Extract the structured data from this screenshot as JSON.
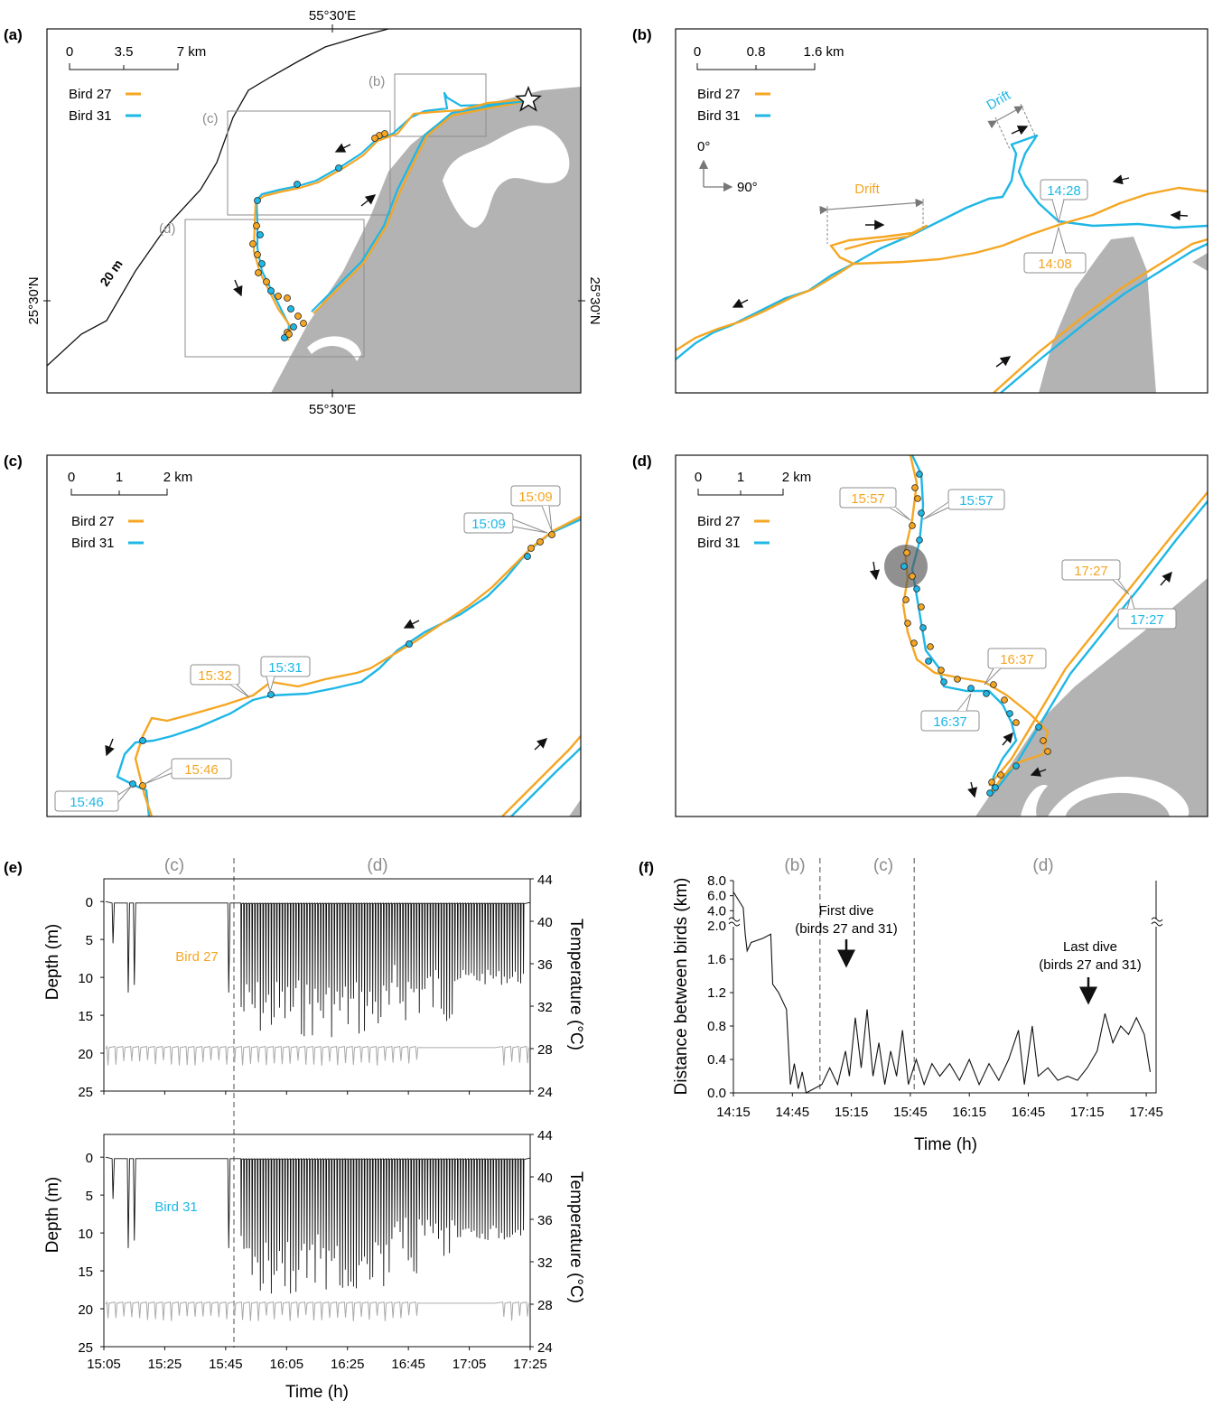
{
  "colors": {
    "bird27": "#F5A623",
    "bird31": "#1EB7E6",
    "land": "#B3B3B3",
    "dive": "#111111",
    "temp": "#AAAAAA",
    "callout_border": "#8C8C8C"
  },
  "legend": {
    "bird27": "Bird 27",
    "bird31": "Bird 31"
  },
  "panel_a": {
    "letter": "(a)",
    "scale": [
      "0",
      "3.5",
      "7 km"
    ],
    "lon_label_top": "55°30'E",
    "lon_label_bottom": "55°30'E",
    "lat_label_left": "25°30'N",
    "lat_label_right": "25°30'N",
    "isobath_label": "20 m",
    "inset_b": "(b)",
    "inset_c": "(c)",
    "inset_d": "(d)",
    "colony_icon": "star-icon"
  },
  "panel_b": {
    "letter": "(b)",
    "scale": [
      "0",
      "0.8",
      "1.6 km"
    ],
    "north_label": "0°",
    "east_label": "90°",
    "drift_label_1": "Drift",
    "drift_label_2": "Drift",
    "time_31": "14:28",
    "time_27": "14:08"
  },
  "panel_c": {
    "letter": "(c)",
    "scale": [
      "0",
      "1",
      "2 km"
    ],
    "times": [
      "15:09",
      "15:09",
      "15:32",
      "15:31",
      "15:46",
      "15:46"
    ]
  },
  "panel_d": {
    "letter": "(d)",
    "scale": [
      "0",
      "1",
      "2 km"
    ],
    "times": [
      "15:57",
      "15:57",
      "17:27",
      "17:27",
      "16:37",
      "16:37"
    ]
  },
  "panel_e": {
    "letter": "(e)",
    "section_c": "(c)",
    "section_d": "(d)",
    "bird27_label": "Bird 27",
    "bird31_label": "Bird 31",
    "ylabel_left": "Depth (m)",
    "ylabel_right": "Temperature (°C)",
    "xlabel": "Time (h)",
    "depth_ticks": [
      "0",
      "5",
      "10",
      "15",
      "20",
      "25"
    ],
    "temp_ticks": [
      "44",
      "40",
      "36",
      "32",
      "28",
      "24"
    ],
    "time_ticks": [
      "15:05",
      "15:25",
      "15:45",
      "16:05",
      "16:25",
      "16:45",
      "17:05",
      "17:25"
    ]
  },
  "panel_f": {
    "letter": "(f)",
    "section_b": "(b)",
    "section_c": "(c)",
    "section_d": "(d)",
    "ylabel": "Distance between birds (km)",
    "xlabel": "Time (h)",
    "y_ticks": [
      "8.0",
      "6.0",
      "4.0",
      "2.0",
      "1.6",
      "1.2",
      "0.8",
      "0.4",
      "0.0"
    ],
    "x_ticks": [
      "14:15",
      "14:45",
      "15:15",
      "15:45",
      "16:15",
      "16:45",
      "17:15",
      "17:45"
    ],
    "first_dive_1": "First dive",
    "first_dive_2": "(birds 27 and 31)",
    "last_dive_1": "Last dive",
    "last_dive_2": "(birds 27 and 31)"
  },
  "chart_data": [
    {
      "type": "line",
      "panel": "e-top",
      "series": [
        {
          "name": "Bird 27"
        }
      ],
      "xlabel": "Time (h)",
      "ylabel": "Depth (m)",
      "y2label": "Temperature (°C)",
      "xlim": [
        "15:05",
        "17:25"
      ],
      "ylim": [
        25,
        -3
      ],
      "y2lim": [
        24,
        44
      ],
      "max_depth_approx": 18,
      "temperature_range_approx": [
        26.5,
        28.5
      ]
    },
    {
      "type": "line",
      "panel": "e-bottom",
      "series": [
        {
          "name": "Bird 31"
        }
      ],
      "xlabel": "Time (h)",
      "ylabel": "Depth (m)",
      "y2label": "Temperature (°C)",
      "xlim": [
        "15:05",
        "17:25"
      ],
      "ylim": [
        25,
        -3
      ],
      "y2lim": [
        24,
        44
      ],
      "max_depth_approx": 17.5,
      "temperature_range_approx": [
        26.5,
        28.5
      ]
    },
    {
      "type": "line",
      "panel": "f",
      "xlabel": "Time (h)",
      "ylabel": "Distance between birds (km)",
      "xlim": [
        "14:15",
        "17:50"
      ],
      "y_axis_break": [
        2.0,
        4.0
      ],
      "points": [
        [
          "14:15",
          6.5
        ],
        [
          "14:20",
          4.4
        ],
        [
          "14:21",
          1.9
        ],
        [
          "14:22",
          1.7
        ],
        [
          "14:24",
          1.8
        ],
        [
          "14:30",
          1.85
        ],
        [
          "14:34",
          1.9
        ],
        [
          "14:35",
          1.3
        ],
        [
          "14:38",
          1.2
        ],
        [
          "14:42",
          1.0
        ],
        [
          "14:44",
          0.1
        ],
        [
          "14:46",
          0.35
        ],
        [
          "14:48",
          0.05
        ],
        [
          "14:50",
          0.25
        ],
        [
          "14:52",
          0.0
        ],
        [
          "14:56",
          0.05
        ],
        [
          "15:00",
          0.1
        ],
        [
          "15:04",
          0.3
        ],
        [
          "15:08",
          0.1
        ],
        [
          "15:12",
          0.5
        ],
        [
          "15:14",
          0.2
        ],
        [
          "15:17",
          0.9
        ],
        [
          "15:20",
          0.3
        ],
        [
          "15:23",
          1.0
        ],
        [
          "15:26",
          0.2
        ],
        [
          "15:29",
          0.6
        ],
        [
          "15:32",
          0.1
        ],
        [
          "15:35",
          0.5
        ],
        [
          "15:38",
          0.2
        ],
        [
          "15:41",
          0.75
        ],
        [
          "15:44",
          0.1
        ],
        [
          "15:48",
          0.4
        ],
        [
          "15:52",
          0.1
        ],
        [
          "15:56",
          0.35
        ],
        [
          "16:00",
          0.2
        ],
        [
          "16:05",
          0.35
        ],
        [
          "16:10",
          0.15
        ],
        [
          "16:15",
          0.4
        ],
        [
          "16:20",
          0.1
        ],
        [
          "16:25",
          0.35
        ],
        [
          "16:30",
          0.15
        ],
        [
          "16:35",
          0.4
        ],
        [
          "16:40",
          0.75
        ],
        [
          "16:43",
          0.1
        ],
        [
          "16:47",
          0.8
        ],
        [
          "16:50",
          0.2
        ],
        [
          "16:55",
          0.3
        ],
        [
          "17:00",
          0.15
        ],
        [
          "17:05",
          0.2
        ],
        [
          "17:10",
          0.15
        ],
        [
          "17:15",
          0.3
        ],
        [
          "17:20",
          0.5
        ],
        [
          "17:24",
          0.95
        ],
        [
          "17:28",
          0.6
        ],
        [
          "17:32",
          0.8
        ],
        [
          "17:36",
          0.7
        ],
        [
          "17:40",
          0.9
        ],
        [
          "17:44",
          0.7
        ],
        [
          "17:47",
          0.25
        ]
      ],
      "vlines": [
        "14:59",
        "15:47"
      ],
      "annotations": [
        "First dive (birds 27 and 31)",
        "Last dive (birds 27 and 31)"
      ]
    }
  ]
}
